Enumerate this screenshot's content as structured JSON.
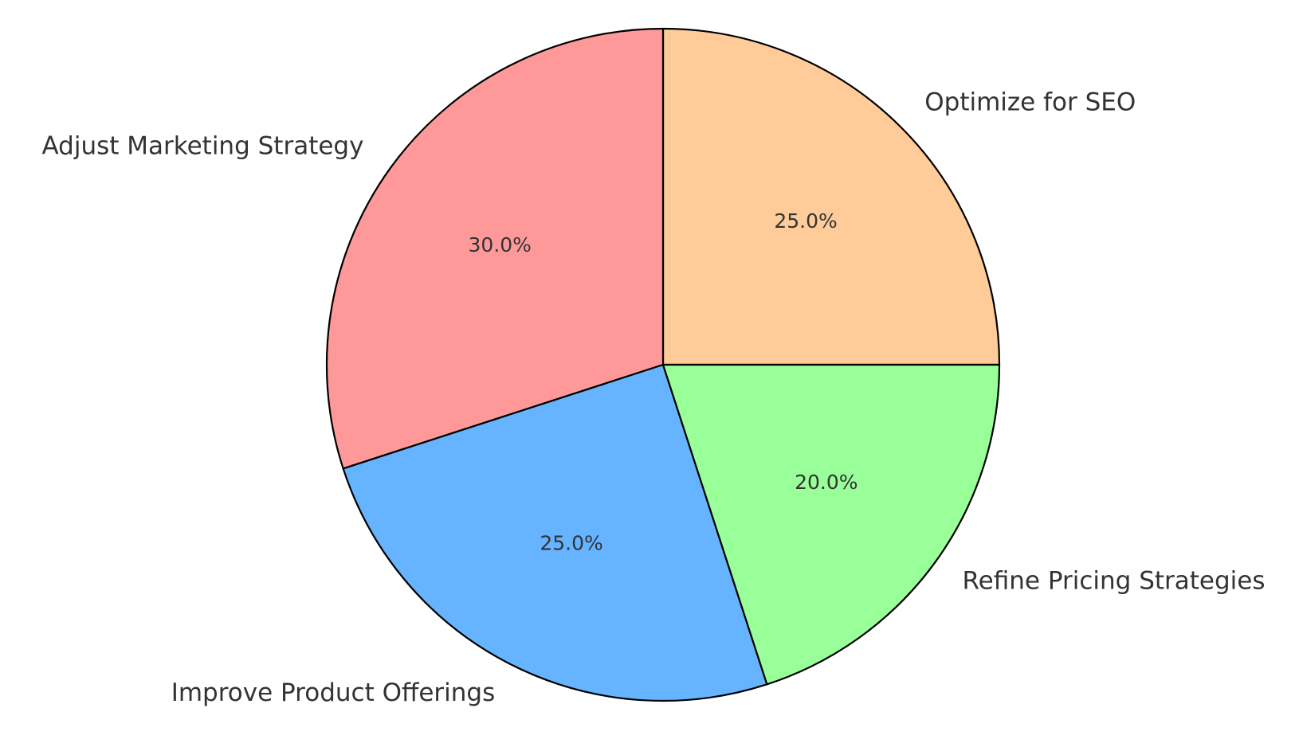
{
  "chart_data": {
    "type": "pie",
    "title": "",
    "categories": [
      "Optimize for SEO",
      "Adjust Marketing Strategy",
      "Improve Product Offerings",
      "Refine Pricing Strategies"
    ],
    "values": [
      25,
      30,
      25,
      20
    ],
    "percent_labels": [
      "25.0%",
      "30.0%",
      "25.0%",
      "20.0%"
    ],
    "colors": [
      "#ffcc99",
      "#ff9999",
      "#66b3ff",
      "#99ff99"
    ],
    "start_angle_deg": 0,
    "direction": "counterclockwise",
    "edge_color": "#000000",
    "legend": "none"
  }
}
